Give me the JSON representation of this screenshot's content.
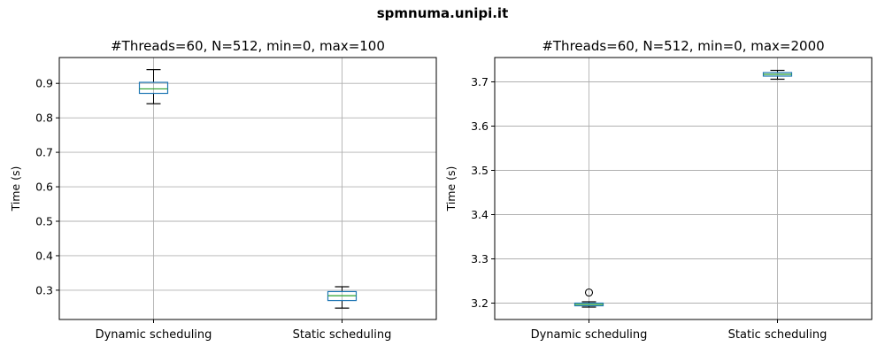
{
  "figure": {
    "suptitle": "spmnuma.unipi.it"
  },
  "chart_data": [
    {
      "type": "box",
      "title": "#Threads=60, N=512, min=0, max=100",
      "ylabel": "Time (s)",
      "xlabel": "",
      "ylim": [
        0.215,
        0.975
      ],
      "yticks": [
        0.3,
        0.4,
        0.5,
        0.6,
        0.7,
        0.8,
        0.9
      ],
      "ytick_labels": [
        "0.3",
        "0.4",
        "0.5",
        "0.6",
        "0.7",
        "0.8",
        "0.9"
      ],
      "grid": true,
      "categories": [
        "Dynamic scheduling",
        "Static scheduling"
      ],
      "boxes": [
        {
          "whislo": 0.841,
          "q1": 0.871,
          "med": 0.884,
          "q3": 0.903,
          "whishi": 0.94,
          "fliers": []
        },
        {
          "whislo": 0.248,
          "q1": 0.27,
          "med": 0.284,
          "q3": 0.296,
          "whishi": 0.31,
          "fliers": []
        }
      ],
      "colors": {
        "box": "#1f77b4",
        "median": "#2ca02c",
        "whisker": "#000000",
        "grid": "#b0b0b0"
      }
    },
    {
      "type": "box",
      "title": "#Threads=60, N=512, min=0, max=2000",
      "ylabel": "Time (s)",
      "xlabel": "",
      "ylim": [
        3.163,
        3.755
      ],
      "yticks": [
        3.2,
        3.3,
        3.4,
        3.5,
        3.6,
        3.7
      ],
      "ytick_labels": [
        "3.2",
        "3.3",
        "3.4",
        "3.5",
        "3.6",
        "3.7"
      ],
      "grid": true,
      "categories": [
        "Dynamic scheduling",
        "Static scheduling"
      ],
      "boxes": [
        {
          "whislo": 3.191,
          "q1": 3.194,
          "med": 3.197,
          "q3": 3.2,
          "whishi": 3.203,
          "fliers": [
            3.224
          ]
        },
        {
          "whislo": 3.706,
          "q1": 3.713,
          "med": 3.717,
          "q3": 3.721,
          "whishi": 3.726,
          "fliers": []
        }
      ],
      "colors": {
        "box": "#1f77b4",
        "median": "#2ca02c",
        "whisker": "#000000",
        "grid": "#b0b0b0"
      }
    }
  ]
}
